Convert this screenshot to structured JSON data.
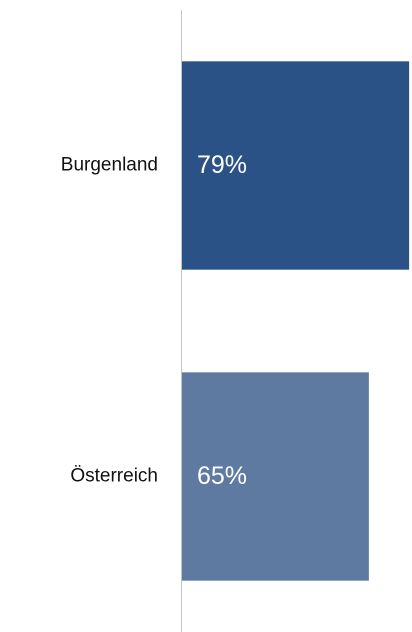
{
  "chart_data": {
    "type": "hbar",
    "categories": [
      "Burgenland",
      "Österreich"
    ],
    "values": [
      79,
      65
    ],
    "value_labels": [
      "79%",
      "65%"
    ],
    "colors": [
      "#2a5286",
      "#5f7aa0"
    ],
    "xlim": [
      0,
      80
    ]
  }
}
